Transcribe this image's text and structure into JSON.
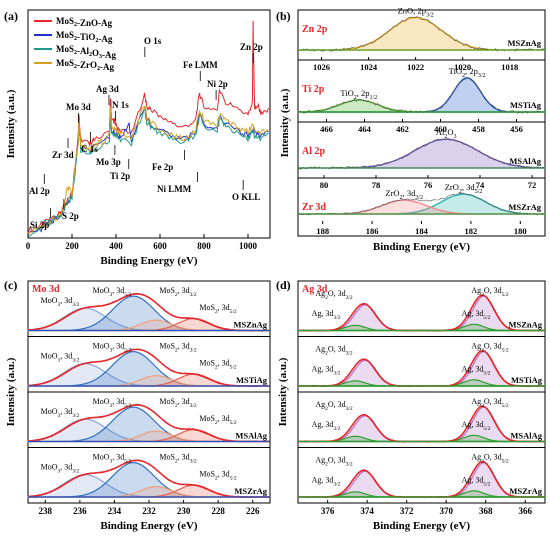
{
  "chart_data": [
    {
      "panel": "(a)",
      "type": "line",
      "xlabel": "Binding Energy (eV)",
      "ylabel": "Intensity (a.u.)",
      "xlim": [
        0,
        1100
      ],
      "xticks": [
        "0",
        "200",
        "400",
        "600",
        "800",
        "1000"
      ],
      "legend_position": "top-left",
      "series": [
        {
          "name": "MoS2-ZnO-Ag",
          "label_main": "MoS",
          "label_sub": "2",
          "label_rest": "-ZnO-Ag",
          "color": "#e8262b",
          "offset": 0.09,
          "x": [
            0,
            60,
            100,
            140,
            160,
            170,
            200,
            228,
            232,
            240,
            280,
            300,
            370,
            375,
            380,
            395,
            400,
            420,
            470,
            530,
            540,
            560,
            600,
            650,
            700,
            760,
            780,
            800,
            860,
            870,
            900,
            960,
            1000,
            1020,
            1023,
            1030,
            1045,
            1060,
            1100
          ],
          "y": [
            0.02,
            0.04,
            0.07,
            0.09,
            0.12,
            0.14,
            0.18,
            0.44,
            0.52,
            0.42,
            0.4,
            0.42,
            0.46,
            0.6,
            0.5,
            0.5,
            0.48,
            0.46,
            0.44,
            0.62,
            0.56,
            0.55,
            0.52,
            0.49,
            0.47,
            0.5,
            0.62,
            0.56,
            0.55,
            0.63,
            0.58,
            0.55,
            0.52,
            0.58,
            0.93,
            0.55,
            0.57,
            0.53,
            0.55
          ]
        },
        {
          "name": "MoS2-TiO2-Ag",
          "label_main": "MoS",
          "label_sub": "2",
          "label_rest": "-TiO",
          "label_sub2": "2",
          "label_rest2": "-Ag",
          "color": "#1f2fd1",
          "offset": 0.0,
          "x": [
            0,
            60,
            100,
            140,
            160,
            170,
            200,
            228,
            232,
            240,
            280,
            300,
            370,
            375,
            380,
            400,
            420,
            460,
            470,
            530,
            540,
            560,
            600,
            650,
            700,
            760,
            780,
            800,
            860,
            870,
            900,
            960,
            1000,
            1023,
            1030,
            1060,
            1100
          ],
          "y": [
            0.02,
            0.04,
            0.07,
            0.09,
            0.12,
            0.14,
            0.18,
            0.42,
            0.5,
            0.4,
            0.38,
            0.4,
            0.44,
            0.56,
            0.47,
            0.46,
            0.44,
            0.5,
            0.43,
            0.58,
            0.52,
            0.5,
            0.47,
            0.45,
            0.43,
            0.46,
            0.55,
            0.5,
            0.48,
            0.53,
            0.5,
            0.47,
            0.45,
            0.48,
            0.46,
            0.45,
            0.47
          ]
        },
        {
          "name": "MoS2-Al2O3-Ag",
          "label_main": "MoS",
          "label_sub": "2",
          "label_rest": "-Al",
          "label_sub2": "2",
          "label_rest2": "O",
          "label_sub3": "3",
          "label_rest3": "-Ag",
          "color": "#1f9a8a",
          "offset": -0.02,
          "x": [
            0,
            60,
            75,
            100,
            120,
            140,
            160,
            170,
            200,
            228,
            232,
            240,
            280,
            300,
            370,
            375,
            380,
            400,
            420,
            470,
            530,
            540,
            560,
            600,
            650,
            700,
            760,
            780,
            800,
            860,
            870,
            900,
            960,
            1000,
            1023,
            1030,
            1060,
            1100
          ],
          "y": [
            0.02,
            0.04,
            0.08,
            0.07,
            0.1,
            0.09,
            0.12,
            0.14,
            0.18,
            0.41,
            0.49,
            0.39,
            0.37,
            0.39,
            0.43,
            0.55,
            0.46,
            0.45,
            0.43,
            0.42,
            0.57,
            0.51,
            0.49,
            0.46,
            0.44,
            0.42,
            0.45,
            0.54,
            0.49,
            0.47,
            0.52,
            0.49,
            0.46,
            0.44,
            0.47,
            0.45,
            0.44,
            0.46
          ]
        },
        {
          "name": "MoS2-ZrO2-Ag",
          "label_main": "MoS",
          "label_sub": "2",
          "label_rest": "-ZrO",
          "label_sub2": "2",
          "label_rest2": "-Ag",
          "color": "#d4a21c",
          "offset": 0.03,
          "x": [
            0,
            60,
            100,
            140,
            160,
            170,
            180,
            200,
            228,
            232,
            240,
            280,
            300,
            330,
            340,
            370,
            375,
            380,
            400,
            420,
            470,
            530,
            540,
            560,
            600,
            650,
            700,
            760,
            780,
            800,
            860,
            870,
            900,
            960,
            1000,
            1023,
            1030,
            1060,
            1100
          ],
          "y": [
            0.02,
            0.04,
            0.07,
            0.09,
            0.12,
            0.17,
            0.22,
            0.19,
            0.42,
            0.5,
            0.41,
            0.38,
            0.4,
            0.42,
            0.4,
            0.45,
            0.57,
            0.48,
            0.47,
            0.45,
            0.44,
            0.58,
            0.52,
            0.5,
            0.47,
            0.45,
            0.43,
            0.46,
            0.56,
            0.51,
            0.49,
            0.54,
            0.51,
            0.48,
            0.46,
            0.49,
            0.47,
            0.46,
            0.48
          ]
        }
      ],
      "annotations": [
        {
          "text": "Zn 2p",
          "x": 1023
        },
        {
          "text": "O 1s",
          "x": 531
        },
        {
          "text": "Fe LMM",
          "x": 783
        },
        {
          "text": "Ni 2p",
          "x": 855
        },
        {
          "text": "Ag 3d",
          "x": 368
        },
        {
          "text": "Mo 3d",
          "x": 229
        },
        {
          "text": "N 1s",
          "x": 398
        },
        {
          "text": "C 1s",
          "x": 284
        },
        {
          "text": "Zr 3d",
          "x": 182
        },
        {
          "text": "Al 2p",
          "x": 74
        },
        {
          "text": "Si 2p",
          "x": 102
        },
        {
          "text": "S 2p",
          "x": 163
        },
        {
          "text": "Mo 3p",
          "x": 395
        },
        {
          "text": "Ti 2p",
          "x": 458
        },
        {
          "text": "Fe 2p",
          "x": 711
        },
        {
          "text": "Ni LMM",
          "x": 770
        },
        {
          "text": "O KLL",
          "x": 978
        }
      ]
    },
    {
      "panel": "(b)",
      "type": "line",
      "xlabel": "Binding Energy (eV)",
      "ylabel": "Intensity (a.u.)",
      "subpanels": [
        {
          "label": "Zn 2p",
          "sample": "MSZnAg",
          "xlim": [
            1027,
            1016.5
          ],
          "xticks": [
            "1026",
            "1024",
            "1022",
            "1020",
            "1018"
          ],
          "peaks": [
            {
              "name": "ZnO, 2p3/2",
              "center": 1022.0,
              "width": 1.1,
              "amp": 1.0,
              "color": "#e8a91c"
            }
          ]
        },
        {
          "label": "Ti 2p",
          "sample": "MSTiAg",
          "xlim": [
            467.5,
            454.5
          ],
          "xticks": [
            "466",
            "464",
            "462",
            "460",
            "458",
            "456"
          ],
          "peaks": [
            {
              "name": "TiO2, 2p3/2",
              "center": 458.6,
              "width": 0.7,
              "amp": 1.0,
              "color": "#1e56c8"
            },
            {
              "name": "TiO2, 2p1/2",
              "center": 464.3,
              "width": 1.0,
              "amp": 0.35,
              "color": "#4caf2a"
            }
          ]
        },
        {
          "label": "Al 2p",
          "sample": "MSAlAg",
          "xlim": [
            81,
            71.5
          ],
          "xticks": [
            "80",
            "78",
            "76",
            "74",
            "72"
          ],
          "peaks": [
            {
              "name": "Al2O3",
              "center": 75.3,
              "width": 1.2,
              "amp": 1.0,
              "color": "#7b5cc0"
            }
          ]
        },
        {
          "label": "Zr 3d",
          "sample": "MSZrAg",
          "xlim": [
            189,
            179
          ],
          "xticks": [
            "188",
            "186",
            "184",
            "182",
            "180"
          ],
          "peaks": [
            {
              "name": "ZrO2, 3d5/2",
              "center": 182.3,
              "width": 0.9,
              "amp": 1.0,
              "color": "#2bb5b0"
            },
            {
              "name": "ZrO2, 3d3/2",
              "center": 184.7,
              "width": 0.9,
              "amp": 0.7,
              "color": "#f08a8a"
            }
          ]
        }
      ]
    },
    {
      "panel": "(c)",
      "type": "line",
      "title": "Mo 3d",
      "xlabel": "Binding Energy (eV)",
      "ylabel": "Intensity (a.u.)",
      "xlim": [
        239,
        225
      ],
      "xticks": [
        "238",
        "236",
        "234",
        "232",
        "230",
        "228",
        "226"
      ],
      "samples": [
        "MSZnAg",
        "MSTiAg",
        "MSAlAg",
        "MSZrAg"
      ],
      "peaks": [
        {
          "name": "MoO3, 3d3/2",
          "center": 235.7,
          "width": 1.2,
          "amp": 0.65,
          "color": "#8aa6d8"
        },
        {
          "name": "MoO3, 3d5/2",
          "center": 232.9,
          "width": 1.2,
          "amp": 1.0,
          "color": "#2e6fc0"
        },
        {
          "name": "MoS2, 3d3/2",
          "center": 231.6,
          "width": 0.9,
          "amp": 0.3,
          "color": "#f0a07a"
        },
        {
          "name": "MoS2, 3d5/2",
          "center": 229.4,
          "width": 0.9,
          "amp": 0.35,
          "color": "#e8604a"
        }
      ]
    },
    {
      "panel": "(d)",
      "type": "line",
      "title": "Ag 3d",
      "xlabel": "Binding Energy (eV)",
      "ylabel": "Intensity (a.u.)",
      "xlim": [
        377.5,
        365
      ],
      "xticks": [
        "376",
        "374",
        "372",
        "370",
        "368",
        "366"
      ],
      "samples": [
        "MSZnAg",
        "MSTiAg",
        "MSAlAg",
        "MSZrAg"
      ],
      "peaks": [
        {
          "name": "Ag2O, 3d3/2",
          "center": 374.1,
          "width": 0.55,
          "amp": 0.75,
          "color": "#b070c8"
        },
        {
          "name": "Ag2O, 3d5/2",
          "center": 368.1,
          "width": 0.55,
          "amp": 1.0,
          "color": "#b070c8"
        },
        {
          "name": "Ag, 3d3/2",
          "center": 374.6,
          "width": 0.5,
          "amp": 0.15,
          "color": "#2aa02a"
        },
        {
          "name": "Ag, 3d5/2",
          "center": 368.6,
          "width": 0.5,
          "amp": 0.18,
          "color": "#2aa02a"
        }
      ]
    }
  ]
}
